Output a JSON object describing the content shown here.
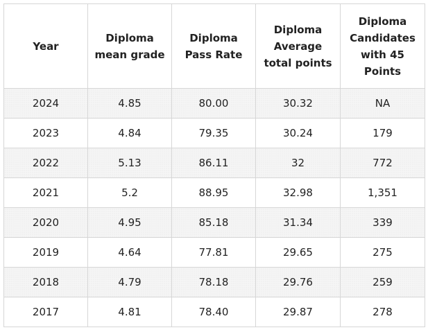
{
  "table": {
    "headers": [
      "Year",
      "Diploma mean grade",
      "Diploma Pass Rate",
      "Diploma Average total points",
      "Diploma Candidates with 45 Points"
    ],
    "rows": [
      [
        "2024",
        "4.85",
        "80.00",
        "30.32",
        "NA"
      ],
      [
        "2023",
        "4.84",
        "79.35",
        "30.24",
        "179"
      ],
      [
        "2022",
        "5.13",
        "86.11",
        "32",
        "772"
      ],
      [
        "2021",
        "5.2",
        "88.95",
        "32.98",
        "1,351"
      ],
      [
        "2020",
        "4.95",
        "85.18",
        "31.34",
        "339"
      ],
      [
        "2019",
        "4.64",
        "77.81",
        "29.65",
        "275"
      ],
      [
        "2018",
        "4.79",
        "78.18",
        "29.76",
        "259"
      ],
      [
        "2017",
        "4.81",
        "78.40",
        "29.87",
        "278"
      ]
    ]
  }
}
